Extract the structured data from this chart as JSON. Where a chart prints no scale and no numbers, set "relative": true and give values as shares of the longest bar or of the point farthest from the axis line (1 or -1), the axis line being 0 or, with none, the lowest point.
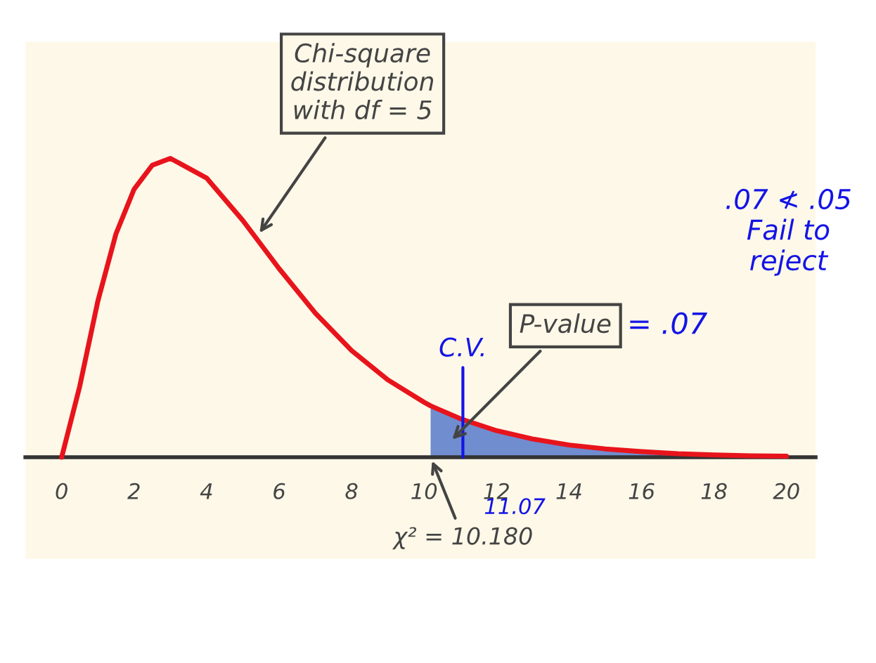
{
  "chart_data": {
    "type": "line",
    "relative": true,
    "xlim": [
      -1,
      20.8
    ],
    "xticks": [
      0,
      2,
      4,
      6,
      8,
      10,
      12,
      14,
      16,
      18,
      20
    ],
    "tick_labels": "x",
    "grid": false,
    "legend": false,
    "series": [
      {
        "type": "area",
        "color": "#6f8dcf",
        "x": [
          10.18,
          11,
          12,
          13,
          14,
          15,
          16,
          17,
          18,
          19,
          20
        ],
        "values": [
          0.172,
          0.129,
          0.089,
          0.061,
          0.041,
          0.028,
          0.019,
          0.012,
          0.008,
          0.005,
          0.0035
        ]
      },
      {
        "color": "#e8141c",
        "x": [
          0,
          0.5,
          1,
          1.5,
          2,
          2.5,
          3,
          4,
          5,
          6,
          7,
          8,
          9,
          10,
          10.18,
          11,
          12,
          13,
          14,
          15,
          16,
          17,
          18,
          19,
          20
        ],
        "values": [
          0,
          0.238,
          0.523,
          0.748,
          0.897,
          0.977,
          1,
          0.934,
          0.792,
          0.631,
          0.482,
          0.357,
          0.259,
          0.184,
          0.172,
          0.129,
          0.089,
          0.061,
          0.041,
          0.028,
          0.019,
          0.012,
          0.008,
          0.005,
          0.0035
        ]
      }
    ],
    "ref_lines": [
      {
        "axis": "x",
        "value": 11.07,
        "label": "C.V.",
        "color": "#1414e6"
      }
    ],
    "annotations": [
      "Chi-square\ndistribution\nwith df = 5",
      "P-value",
      "= .07",
      "11.07",
      {
        "text": "χ² = 10.180",
        "x": 10.18,
        "y": 0
      },
      ".07 ≮ .05\nFail to\nreject"
    ]
  }
}
